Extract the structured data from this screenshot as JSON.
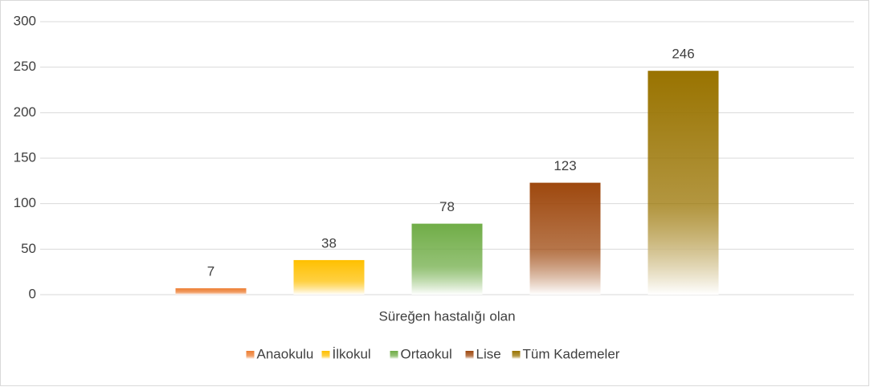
{
  "chart_data": {
    "type": "bar",
    "categories": [
      "Süreğen hastalığı olan"
    ],
    "series": [
      {
        "name": "Anaokulu",
        "color": "#ed7d31",
        "values": [
          7
        ]
      },
      {
        "name": "İlkokul",
        "color": "#ffc000",
        "values": [
          38
        ]
      },
      {
        "name": "Ortaokul",
        "color": "#70ad47",
        "values": [
          78
        ]
      },
      {
        "name": "Lise",
        "color": "#9e480e",
        "values": [
          123
        ]
      },
      {
        "name": "Tüm Kademeler",
        "color": "#997300",
        "values": [
          246
        ]
      }
    ],
    "ylim": [
      0,
      300
    ],
    "yticks": [
      0,
      50,
      100,
      150,
      200,
      250,
      300
    ],
    "grid": true,
    "legend": "bottom"
  }
}
